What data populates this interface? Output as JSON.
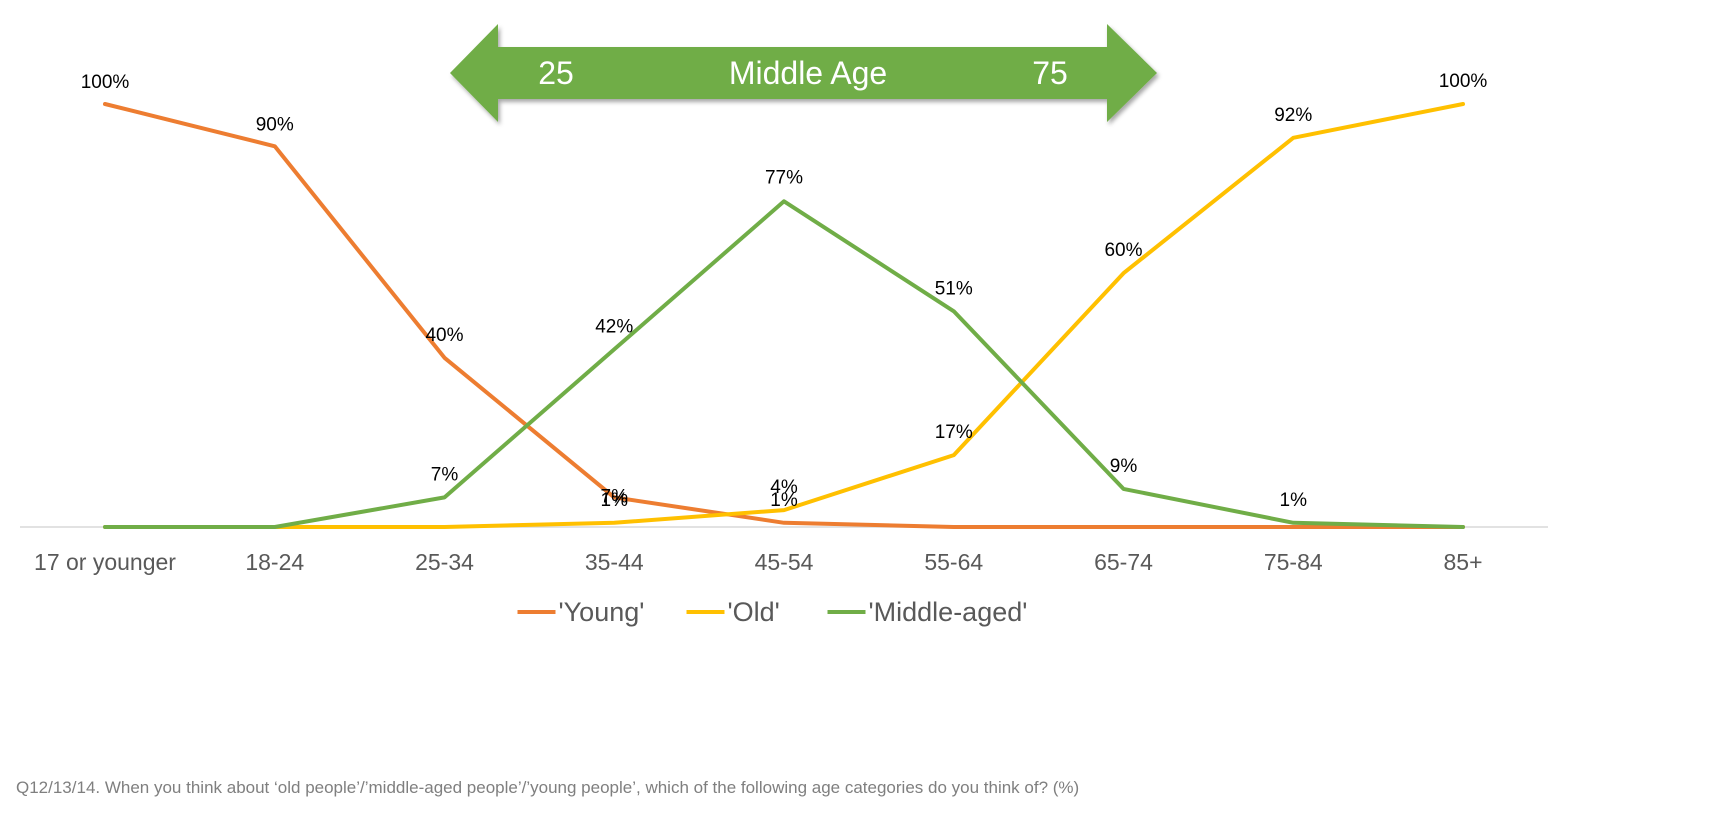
{
  "chart_data": {
    "type": "line",
    "categories": [
      "17 or younger",
      "18-24",
      "25-34",
      "35-44",
      "45-54",
      "55-64",
      "65-74",
      "75-84",
      "85+"
    ],
    "ylim": [
      0,
      100
    ],
    "grid": false,
    "legend_position": "bottom",
    "series": [
      {
        "name": "'Young'",
        "color": "#ED7D31",
        "values": [
          100,
          90,
          40,
          7,
          1,
          0,
          0,
          0,
          0
        ],
        "labels": [
          "100%",
          "90%",
          "40%",
          "7%",
          "1%",
          null,
          null,
          null,
          null
        ]
      },
      {
        "name": "'Old'",
        "color": "#FFC000",
        "values": [
          0,
          0,
          0,
          1,
          4,
          17,
          60,
          92,
          100
        ],
        "labels": [
          null,
          null,
          null,
          "1%",
          "4%",
          "17%",
          "60%",
          "92%",
          "100%"
        ]
      },
      {
        "name": "'Middle-aged'",
        "color": "#70AD47",
        "values": [
          0,
          0,
          7,
          42,
          77,
          51,
          9,
          1,
          0
        ],
        "labels": [
          null,
          null,
          "7%",
          "42%",
          "77%",
          "51%",
          "9%",
          "1%",
          null
        ]
      }
    ],
    "annotation": {
      "type": "double-arrow",
      "color": "#70AD47",
      "left_text": "25",
      "center_text": "Middle Age",
      "right_text": "75"
    },
    "axis_color": "#D9D9D9"
  },
  "footnote": "Q12/13/14. When you think about ‘old people’/’middle-aged people’/’young people’, which of the following age categories do you think of? (%)"
}
